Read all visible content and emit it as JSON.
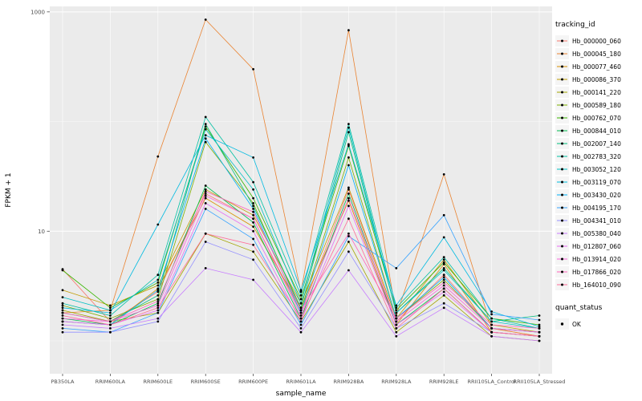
{
  "chart_data": {
    "type": "line",
    "title": "",
    "xlabel": "sample_name",
    "ylabel": "FPKM + 1",
    "y_scale": "log10",
    "y_log_range": [
      -0.3,
      3.05
    ],
    "y_ticks": [
      {
        "label": "1000",
        "value": 1000
      },
      {
        "label": "10",
        "value": 10
      }
    ],
    "y_minor_ticks": [
      1,
      100
    ],
    "panel_bg": "#EBEBEB",
    "grid_color": "#FFFFFF",
    "tick_text_color": "#4D4D4D",
    "point_color": "#000000",
    "legend_title": "tracking_id",
    "quant_legend": {
      "title": "quant_status",
      "items": [
        {
          "label": "OK"
        }
      ]
    },
    "categories": [
      "PB350LA",
      "RRIM600LA",
      "RRIM600LE",
      "RRIM600SE",
      "RRIM600PE",
      "RRIM601LA",
      "RRIM928BA",
      "RRIM928LA",
      "RRIM928LE",
      "RRII105LA_Control",
      "RRII105LA_Stressed"
    ],
    "series": [
      {
        "name": "Hb_000000_060",
        "color": "#F8766D",
        "values": [
          4.5,
          1.5,
          2.8,
          22,
          13,
          1.8,
          24,
          1.5,
          4.0,
          1.3,
          1.1
        ]
      },
      {
        "name": "Hb_000045_180",
        "color": "#EA8331",
        "values": [
          1.8,
          1.9,
          48,
          850,
          300,
          2.8,
          680,
          1.7,
          33,
          1.3,
          1.1
        ]
      },
      {
        "name": "Hb_000077_460",
        "color": "#D89000",
        "values": [
          1.5,
          1.4,
          3.0,
          20,
          11,
          2.0,
          19,
          1.4,
          5.0,
          1.2,
          1.1
        ]
      },
      {
        "name": "Hb_000086_370",
        "color": "#C09B00",
        "values": [
          2.9,
          2.1,
          3.2,
          24,
          14,
          2.2,
          25,
          1.6,
          5.5,
          1.4,
          1.2
        ]
      },
      {
        "name": "Hb_000141_220",
        "color": "#A3A500",
        "values": [
          1.9,
          1.5,
          1.8,
          9.5,
          6.5,
          1.5,
          8,
          1.2,
          2.6,
          1.1,
          1.0
        ]
      },
      {
        "name": "Hb_000589_180",
        "color": "#7CAE00",
        "values": [
          2.1,
          1.6,
          2.4,
          65,
          18,
          1.9,
          47,
          1.6,
          3.6,
          1.3,
          1.2
        ]
      },
      {
        "name": "Hb_000762_070",
        "color": "#39B600",
        "values": [
          4.4,
          2.0,
          3.4,
          90,
          20,
          2.4,
          60,
          1.9,
          5.2,
          1.6,
          1.4
        ]
      },
      {
        "name": "Hb_000844_010",
        "color": "#00BB4E",
        "values": [
          1.6,
          1.4,
          2.2,
          26,
          12,
          1.6,
          22,
          1.4,
          3.0,
          1.2,
          1.1
        ]
      },
      {
        "name": "Hb_002007_140",
        "color": "#00BF7D",
        "values": [
          1.8,
          1.5,
          2.6,
          95,
          17,
          2.0,
          80,
          1.8,
          4.6,
          1.5,
          1.7
        ]
      },
      {
        "name": "Hb_002783_320",
        "color": "#00C1A3",
        "values": [
          2.2,
          1.7,
          4.0,
          110,
          28,
          2.6,
          95,
          2.0,
          5.8,
          1.6,
          1.3
        ]
      },
      {
        "name": "Hb_003052_120",
        "color": "#00BFC4",
        "values": [
          2.5,
          1.9,
          3.6,
          85,
          24,
          2.2,
          88,
          1.8,
          4.4,
          1.5,
          1.3
        ]
      },
      {
        "name": "Hb_003119_070",
        "color": "#00BAE0",
        "values": [
          2.0,
          1.8,
          11.5,
          75,
          47,
          2.9,
          62,
          2.1,
          8.8,
          1.85,
          1.35
        ]
      },
      {
        "name": "Hb_003430_020",
        "color": "#00B0F6",
        "values": [
          1.5,
          1.4,
          2.9,
          70,
          16,
          1.8,
          40,
          1.6,
          3.8,
          1.3,
          1.2
        ]
      },
      {
        "name": "Hb_004195_170",
        "color": "#35A2FF",
        "values": [
          1.3,
          1.2,
          1.8,
          16,
          8.5,
          1.4,
          9,
          4.6,
          14,
          1.75,
          1.55
        ]
      },
      {
        "name": "Hb_004341_010",
        "color": "#9590FF",
        "values": [
          1.2,
          1.2,
          1.5,
          8.0,
          5.5,
          1.3,
          6.5,
          1.3,
          2.2,
          1.2,
          1.1
        ]
      },
      {
        "name": "Hb_005380_040",
        "color": "#C77CFF",
        "values": [
          1.4,
          1.3,
          1.6,
          4.6,
          3.6,
          1.2,
          4.4,
          1.1,
          2.0,
          1.1,
          1.0
        ]
      },
      {
        "name": "Hb_012807_060",
        "color": "#E76BF3",
        "values": [
          1.5,
          1.4,
          1.9,
          18,
          10,
          1.5,
          17,
          1.4,
          2.8,
          1.2,
          1.1
        ]
      },
      {
        "name": "Hb_013914_020",
        "color": "#FA62DB",
        "values": [
          1.6,
          1.5,
          2.1,
          21,
          13,
          1.7,
          20,
          1.5,
          3.2,
          1.3,
          1.2
        ]
      },
      {
        "name": "Hb_017866_020",
        "color": "#FF62BC",
        "values": [
          1.8,
          1.5,
          2.3,
          23,
          15,
          1.9,
          9.5,
          1.6,
          3.4,
          1.4,
          1.3
        ]
      },
      {
        "name": "Hb_164010_090",
        "color": "#FF6A98",
        "values": [
          1.7,
          1.4,
          2.0,
          9.5,
          7.5,
          1.6,
          13,
          1.3,
          3.0,
          1.2,
          1.1
        ]
      }
    ]
  }
}
